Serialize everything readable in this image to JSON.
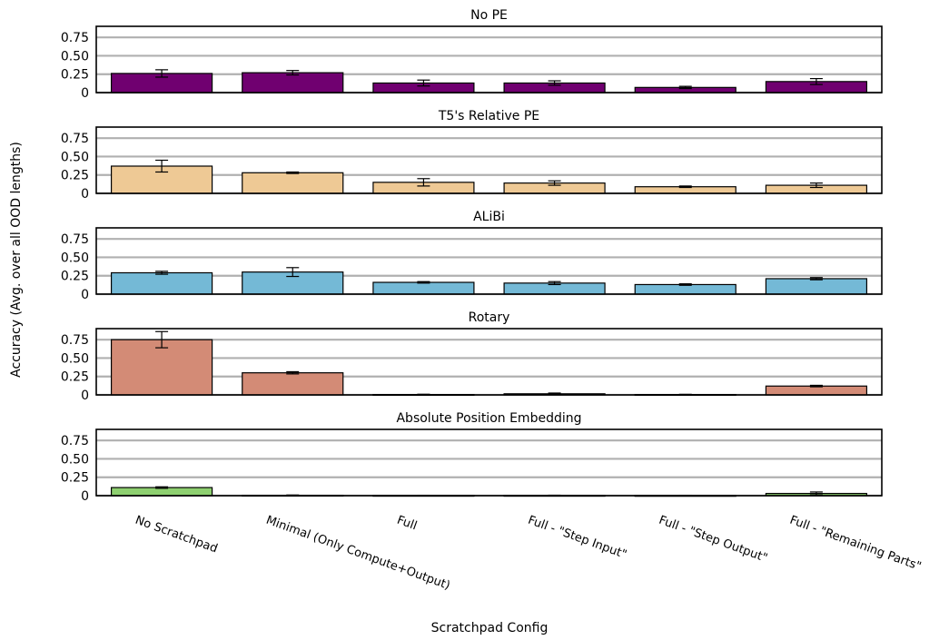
{
  "chart_data": {
    "type": "bar",
    "xlabel": "Scratchpad Config",
    "ylabel": "Accuracy (Avg. over all OOD lengths)",
    "ylim": [
      0,
      0.9
    ],
    "yticks": [
      0,
      0.25,
      0.5,
      0.75
    ],
    "ytick_labels": [
      "0",
      "0.25",
      "0.50",
      "0.75"
    ],
    "grid": true,
    "categories": [
      "No Scratchpad",
      "Minimal (Only Compute+Output)",
      "Full",
      "Full - \"Step Input\"",
      "Full - \"Step Output\"",
      "Full - \"Remaining Parts\""
    ],
    "panels": [
      {
        "title": "No PE",
        "color": "#700070",
        "values": [
          0.26,
          0.27,
          0.13,
          0.13,
          0.07,
          0.15
        ],
        "errors": [
          0.05,
          0.03,
          0.04,
          0.03,
          0.015,
          0.04
        ]
      },
      {
        "title": "T5's Relative PE",
        "color": "#eec995",
        "values": [
          0.37,
          0.28,
          0.15,
          0.14,
          0.09,
          0.11
        ],
        "errors": [
          0.08,
          0.01,
          0.05,
          0.03,
          0.01,
          0.03
        ]
      },
      {
        "title": "ALiBi",
        "color": "#74b9d6",
        "values": [
          0.29,
          0.3,
          0.16,
          0.15,
          0.13,
          0.21
        ],
        "errors": [
          0.02,
          0.06,
          0.01,
          0.02,
          0.01,
          0.015
        ]
      },
      {
        "title": "Rotary",
        "color": "#d38b76",
        "values": [
          0.75,
          0.3,
          0.005,
          0.015,
          0.005,
          0.12
        ],
        "errors": [
          0.11,
          0.015,
          0.004,
          0.01,
          0.003,
          0.01
        ]
      },
      {
        "title": "Absolute Position Embedding",
        "color": "#8ed070",
        "values": [
          0.11,
          0.005,
          0.003,
          0.003,
          0.002,
          0.03
        ],
        "errors": [
          0.01,
          0.004,
          0.002,
          0.003,
          0.002,
          0.02
        ]
      }
    ]
  }
}
